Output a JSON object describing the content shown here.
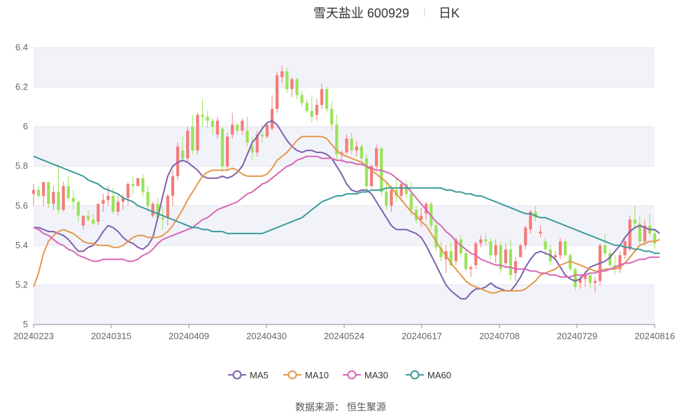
{
  "header": {
    "stock_name": "雪天盐业 600929",
    "period": "日K"
  },
  "source": "数据来源：  恒生聚源",
  "colors": {
    "up": "#f47c7c",
    "down": "#9be35a",
    "MA5": "#7c5fae",
    "MA10": "#e5974a",
    "MA30": "#d766b5",
    "MA60": "#3c9a9a",
    "band": "#f2f3f9"
  },
  "chart_data": {
    "type": "candlestick",
    "ylim": [
      5,
      6.4
    ],
    "y_ticks": [
      "5",
      "5.2",
      "5.4",
      "5.6",
      "5.8",
      "6",
      "6.2",
      "6.4"
    ],
    "x_ticks": [
      "20240223",
      "20240315",
      "20240409",
      "20240430",
      "20240524",
      "20240617",
      "20240708",
      "20240729",
      "20240816"
    ],
    "legend": [
      "MA5",
      "MA10",
      "MA30",
      "MA60"
    ],
    "ohlc": [
      [
        5.66,
        5.71,
        5.6,
        5.68
      ],
      [
        5.68,
        5.7,
        5.64,
        5.65
      ],
      [
        5.65,
        5.72,
        5.6,
        5.72
      ],
      [
        5.72,
        5.72,
        5.59,
        5.61
      ],
      [
        5.61,
        5.7,
        5.58,
        5.67
      ],
      [
        5.67,
        5.81,
        5.56,
        5.58
      ],
      [
        5.58,
        5.72,
        5.57,
        5.7
      ],
      [
        5.7,
        5.75,
        5.62,
        5.64
      ],
      [
        5.64,
        5.68,
        5.58,
        5.62
      ],
      [
        5.62,
        5.63,
        5.52,
        5.55
      ],
      [
        5.5,
        5.55,
        5.48,
        5.55
      ],
      [
        5.55,
        5.58,
        5.52,
        5.53
      ],
      [
        5.53,
        5.56,
        5.5,
        5.51
      ],
      [
        5.52,
        5.61,
        5.5,
        5.61
      ],
      [
        5.61,
        5.66,
        5.57,
        5.63
      ],
      [
        5.63,
        5.7,
        5.6,
        5.65
      ],
      [
        5.65,
        5.69,
        5.56,
        5.57
      ],
      [
        5.57,
        5.65,
        5.55,
        5.62
      ],
      [
        5.62,
        5.66,
        5.58,
        5.64
      ],
      [
        5.64,
        5.72,
        5.6,
        5.71
      ],
      [
        5.71,
        5.75,
        5.66,
        5.7
      ],
      [
        5.7,
        5.74,
        5.7,
        5.74
      ],
      [
        5.74,
        5.76,
        5.65,
        5.67
      ],
      [
        5.67,
        5.7,
        5.58,
        5.6
      ],
      [
        5.55,
        5.62,
        5.54,
        5.61
      ],
      [
        5.61,
        5.64,
        5.52,
        5.54
      ],
      [
        5.54,
        5.6,
        5.48,
        5.53
      ],
      [
        5.54,
        5.66,
        5.5,
        5.65
      ],
      [
        5.65,
        5.78,
        5.6,
        5.75
      ],
      [
        5.75,
        5.92,
        5.73,
        5.9
      ],
      [
        5.88,
        5.95,
        5.82,
        5.84
      ],
      [
        5.84,
        6.0,
        5.82,
        5.98
      ],
      [
        6.0,
        6.06,
        5.86,
        5.88
      ],
      [
        5.88,
        6.07,
        5.86,
        6.06
      ],
      [
        6.06,
        6.14,
        6.0,
        6.05
      ],
      [
        6.05,
        6.08,
        5.99,
        6.03
      ],
      [
        6.03,
        6.04,
        5.96,
        6.0
      ],
      [
        5.96,
        6.05,
        5.94,
        6.03
      ],
      [
        5.99,
        6.0,
        5.77,
        5.8
      ],
      [
        5.8,
        5.97,
        5.78,
        5.95
      ],
      [
        5.96,
        6.07,
        5.94,
        6.01
      ],
      [
        6.01,
        6.02,
        5.96,
        5.98
      ],
      [
        5.98,
        6.04,
        5.96,
        6.03
      ],
      [
        5.98,
        6.05,
        5.9,
        5.92
      ],
      [
        5.9,
        5.95,
        5.83,
        5.87
      ],
      [
        5.87,
        5.98,
        5.85,
        5.96
      ],
      [
        5.96,
        6.01,
        5.92,
        5.95
      ],
      [
        5.95,
        6.02,
        5.94,
        6.01
      ],
      [
        5.99,
        6.16,
        5.98,
        6.09
      ],
      [
        6.09,
        6.28,
        6.07,
        6.26
      ],
      [
        6.25,
        6.31,
        6.22,
        6.28
      ],
      [
        6.28,
        6.3,
        6.17,
        6.19
      ],
      [
        6.19,
        6.25,
        6.15,
        6.24
      ],
      [
        6.24,
        6.25,
        6.14,
        6.16
      ],
      [
        6.16,
        6.18,
        6.1,
        6.12
      ],
      [
        6.12,
        6.14,
        6.07,
        6.08
      ],
      [
        6.08,
        6.16,
        6.02,
        6.05
      ],
      [
        6.06,
        6.14,
        6.03,
        6.11
      ],
      [
        6.11,
        6.22,
        6.09,
        6.19
      ],
      [
        6.19,
        6.2,
        6.07,
        6.09
      ],
      [
        6.09,
        6.13,
        5.98,
        6.01
      ],
      [
        6.01,
        6.06,
        5.83,
        5.86
      ],
      [
        5.86,
        5.88,
        5.82,
        5.87
      ],
      [
        5.87,
        5.96,
        5.86,
        5.94
      ],
      [
        5.94,
        5.97,
        5.86,
        5.88
      ],
      [
        5.88,
        5.93,
        5.85,
        5.9
      ],
      [
        5.9,
        5.91,
        5.82,
        5.84
      ],
      [
        5.84,
        5.86,
        5.68,
        5.7
      ],
      [
        5.7,
        5.81,
        5.69,
        5.8
      ],
      [
        5.8,
        5.91,
        5.78,
        5.89
      ],
      [
        5.89,
        5.9,
        5.65,
        5.67
      ],
      [
        5.67,
        5.72,
        5.58,
        5.6
      ],
      [
        5.6,
        5.7,
        5.57,
        5.68
      ],
      [
        5.68,
        5.74,
        5.62,
        5.65
      ],
      [
        5.65,
        5.72,
        5.62,
        5.71
      ],
      [
        5.71,
        5.73,
        5.64,
        5.66
      ],
      [
        5.66,
        5.72,
        5.55,
        5.58
      ],
      [
        5.58,
        5.6,
        5.51,
        5.53
      ],
      [
        5.53,
        5.59,
        5.49,
        5.55
      ],
      [
        5.56,
        5.62,
        5.53,
        5.61
      ],
      [
        5.61,
        5.62,
        5.48,
        5.5
      ],
      [
        5.5,
        5.52,
        5.37,
        5.39
      ],
      [
        5.39,
        5.42,
        5.32,
        5.34
      ],
      [
        5.33,
        5.4,
        5.26,
        5.37
      ],
      [
        5.37,
        5.42,
        5.29,
        5.3
      ],
      [
        5.32,
        5.44,
        5.3,
        5.43
      ],
      [
        5.43,
        5.45,
        5.34,
        5.36
      ],
      [
        5.36,
        5.38,
        5.27,
        5.28
      ],
      [
        5.28,
        5.3,
        5.24,
        5.29
      ],
      [
        5.3,
        5.42,
        5.28,
        5.41
      ],
      [
        5.41,
        5.45,
        5.39,
        5.43
      ],
      [
        5.43,
        5.46,
        5.4,
        5.42
      ],
      [
        5.42,
        5.44,
        5.33,
        5.35
      ],
      [
        5.35,
        5.43,
        5.31,
        5.4
      ],
      [
        5.4,
        5.42,
        5.26,
        5.28
      ],
      [
        5.31,
        5.41,
        5.29,
        5.38
      ],
      [
        5.38,
        5.43,
        5.22,
        5.25
      ],
      [
        5.26,
        5.34,
        5.22,
        5.32
      ],
      [
        5.34,
        5.41,
        5.34,
        5.4
      ],
      [
        5.4,
        5.5,
        5.38,
        5.49
      ],
      [
        5.48,
        5.58,
        5.46,
        5.57
      ],
      [
        5.57,
        5.6,
        5.52,
        5.54
      ],
      [
        5.46,
        5.5,
        5.44,
        5.47
      ],
      [
        5.42,
        5.44,
        5.35,
        5.38
      ],
      [
        5.38,
        5.4,
        5.3,
        5.32
      ],
      [
        5.34,
        5.37,
        5.33,
        5.35
      ],
      [
        5.35,
        5.44,
        5.33,
        5.42
      ],
      [
        5.42,
        5.43,
        5.34,
        5.35
      ],
      [
        5.35,
        5.36,
        5.27,
        5.28
      ],
      [
        5.28,
        5.29,
        5.17,
        5.19
      ],
      [
        5.21,
        5.25,
        5.18,
        5.23
      ],
      [
        5.23,
        5.27,
        5.19,
        5.25
      ],
      [
        5.25,
        5.26,
        5.18,
        5.21
      ],
      [
        5.21,
        5.24,
        5.16,
        5.22
      ],
      [
        5.22,
        5.41,
        5.2,
        5.4
      ],
      [
        5.4,
        5.46,
        5.34,
        5.36
      ],
      [
        5.36,
        5.38,
        5.29,
        5.3
      ],
      [
        5.3,
        5.35,
        5.25,
        5.28
      ],
      [
        5.28,
        5.37,
        5.26,
        5.35
      ],
      [
        5.35,
        5.43,
        5.33,
        5.42
      ],
      [
        5.38,
        5.55,
        5.37,
        5.53
      ],
      [
        5.53,
        5.6,
        5.48,
        5.51
      ],
      [
        5.51,
        5.55,
        5.4,
        5.42
      ],
      [
        5.42,
        5.53,
        5.4,
        5.5
      ],
      [
        5.5,
        5.56,
        5.45,
        5.46
      ],
      [
        5.46,
        5.48,
        5.38,
        5.41
      ]
    ],
    "series": [
      {
        "name": "MA5",
        "values": [
          5.49,
          5.49,
          5.48,
          5.47,
          5.47,
          5.46,
          5.45,
          5.43,
          5.4,
          5.37,
          5.37,
          5.39,
          5.4,
          5.43,
          5.47,
          5.5,
          5.49,
          5.47,
          5.44,
          5.42,
          5.41,
          5.39,
          5.38,
          5.4,
          5.44,
          5.54,
          5.65,
          5.75,
          5.8,
          5.82,
          5.83,
          5.82,
          5.8,
          5.78,
          5.75,
          5.74,
          5.74,
          5.74,
          5.75,
          5.74,
          5.75,
          5.77,
          5.8,
          5.86,
          5.92,
          5.95,
          5.99,
          6.02,
          6.03,
          6.01,
          5.97,
          5.93,
          5.9,
          5.88,
          5.87,
          5.88,
          5.88,
          5.87,
          5.87,
          5.86,
          5.84,
          5.8,
          5.76,
          5.71,
          5.68,
          5.67,
          5.68,
          5.68,
          5.66,
          5.62,
          5.58,
          5.54,
          5.5,
          5.48,
          5.48,
          5.48,
          5.47,
          5.46,
          5.44,
          5.4,
          5.35,
          5.3,
          5.25,
          5.2,
          5.17,
          5.15,
          5.13,
          5.13,
          5.16,
          5.18,
          5.18,
          5.19,
          5.21,
          5.19,
          5.18,
          5.17,
          5.17,
          5.2,
          5.24,
          5.29,
          5.33,
          5.36,
          5.37,
          5.36,
          5.35,
          5.33,
          5.29,
          5.25,
          5.23,
          5.22,
          5.23,
          5.26,
          5.29,
          5.3,
          5.31,
          5.32,
          5.34,
          5.37,
          5.4,
          5.44,
          5.47,
          5.49,
          5.5,
          5.49,
          5.48,
          5.48,
          5.46
        ]
      },
      {
        "name": "MA10",
        "values": [
          5.19,
          5.26,
          5.36,
          5.42,
          5.45,
          5.47,
          5.48,
          5.47,
          5.46,
          5.44,
          5.42,
          5.41,
          5.41,
          5.4,
          5.4,
          5.4,
          5.39,
          5.39,
          5.4,
          5.42,
          5.44,
          5.45,
          5.45,
          5.44,
          5.44,
          5.44,
          5.45,
          5.47,
          5.5,
          5.54,
          5.58,
          5.63,
          5.67,
          5.71,
          5.75,
          5.77,
          5.78,
          5.78,
          5.78,
          5.78,
          5.79,
          5.78,
          5.76,
          5.75,
          5.75,
          5.75,
          5.75,
          5.76,
          5.79,
          5.83,
          5.85,
          5.87,
          5.9,
          5.93,
          5.95,
          5.95,
          5.95,
          5.95,
          5.95,
          5.94,
          5.91,
          5.88,
          5.86,
          5.85,
          5.84,
          5.83,
          5.82,
          5.8,
          5.78,
          5.76,
          5.74,
          5.72,
          5.69,
          5.66,
          5.63,
          5.6,
          5.57,
          5.55,
          5.52,
          5.5,
          5.46,
          5.42,
          5.38,
          5.35,
          5.31,
          5.28,
          5.25,
          5.22,
          5.2,
          5.19,
          5.18,
          5.17,
          5.16,
          5.16,
          5.17,
          5.17,
          5.17,
          5.17,
          5.17,
          5.18,
          5.2,
          5.22,
          5.25,
          5.26,
          5.27,
          5.28,
          5.3,
          5.31,
          5.32,
          5.31,
          5.3,
          5.29,
          5.28,
          5.27,
          5.27,
          5.28,
          5.28,
          5.28,
          5.29,
          5.31,
          5.34,
          5.37,
          5.4,
          5.41,
          5.42,
          5.42,
          5.43
        ]
      },
      {
        "name": "MA30",
        "values": [
          5.49,
          5.48,
          5.46,
          5.45,
          5.43,
          5.41,
          5.4,
          5.38,
          5.37,
          5.35,
          5.34,
          5.33,
          5.32,
          5.32,
          5.33,
          5.33,
          5.33,
          5.33,
          5.33,
          5.32,
          5.32,
          5.33,
          5.35,
          5.36,
          5.38,
          5.41,
          5.43,
          5.44,
          5.45,
          5.46,
          5.47,
          5.48,
          5.49,
          5.51,
          5.53,
          5.54,
          5.56,
          5.58,
          5.59,
          5.6,
          5.61,
          5.62,
          5.64,
          5.66,
          5.67,
          5.69,
          5.71,
          5.72,
          5.74,
          5.76,
          5.78,
          5.8,
          5.81,
          5.83,
          5.84,
          5.85,
          5.85,
          5.85,
          5.84,
          5.84,
          5.84,
          5.83,
          5.83,
          5.82,
          5.82,
          5.81,
          5.81,
          5.8,
          5.79,
          5.78,
          5.78,
          5.77,
          5.76,
          5.74,
          5.72,
          5.7,
          5.67,
          5.64,
          5.61,
          5.58,
          5.55,
          5.52,
          5.5,
          5.47,
          5.45,
          5.42,
          5.4,
          5.38,
          5.36,
          5.35,
          5.33,
          5.32,
          5.31,
          5.3,
          5.3,
          5.29,
          5.29,
          5.28,
          5.28,
          5.28,
          5.27,
          5.27,
          5.26,
          5.26,
          5.25,
          5.25,
          5.24,
          5.24,
          5.24,
          5.25,
          5.25,
          5.25,
          5.26,
          5.26,
          5.27,
          5.27,
          5.28,
          5.29,
          5.3,
          5.31,
          5.31,
          5.32,
          5.33,
          5.33,
          5.34,
          5.34,
          5.34
        ]
      },
      {
        "name": "MA60",
        "values": [
          5.85,
          5.84,
          5.83,
          5.82,
          5.81,
          5.8,
          5.79,
          5.78,
          5.77,
          5.76,
          5.75,
          5.73,
          5.72,
          5.71,
          5.69,
          5.68,
          5.67,
          5.66,
          5.64,
          5.63,
          5.62,
          5.6,
          5.59,
          5.58,
          5.57,
          5.56,
          5.55,
          5.54,
          5.53,
          5.52,
          5.51,
          5.5,
          5.49,
          5.49,
          5.48,
          5.48,
          5.47,
          5.47,
          5.47,
          5.46,
          5.46,
          5.46,
          5.46,
          5.46,
          5.46,
          5.46,
          5.46,
          5.47,
          5.48,
          5.49,
          5.5,
          5.51,
          5.52,
          5.53,
          5.54,
          5.56,
          5.58,
          5.6,
          5.62,
          5.63,
          5.64,
          5.65,
          5.65,
          5.66,
          5.66,
          5.66,
          5.67,
          5.67,
          5.68,
          5.68,
          5.68,
          5.69,
          5.69,
          5.69,
          5.69,
          5.69,
          5.69,
          5.69,
          5.69,
          5.69,
          5.69,
          5.69,
          5.69,
          5.68,
          5.68,
          5.67,
          5.67,
          5.66,
          5.66,
          5.65,
          5.65,
          5.64,
          5.63,
          5.62,
          5.61,
          5.6,
          5.59,
          5.58,
          5.57,
          5.56,
          5.56,
          5.55,
          5.54,
          5.54,
          5.53,
          5.52,
          5.51,
          5.5,
          5.49,
          5.48,
          5.47,
          5.46,
          5.45,
          5.44,
          5.43,
          5.42,
          5.41,
          5.4,
          5.4,
          5.39,
          5.39,
          5.38,
          5.38,
          5.37,
          5.37,
          5.36,
          5.36
        ]
      }
    ]
  }
}
